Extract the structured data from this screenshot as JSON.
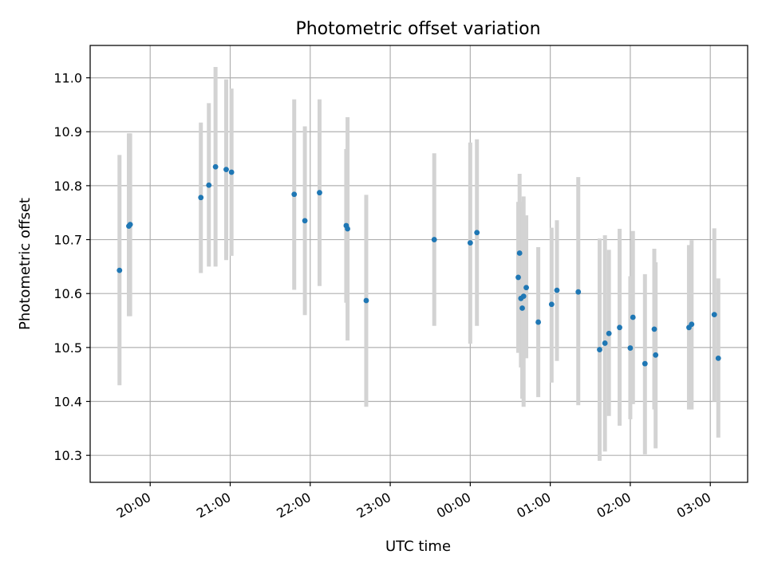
{
  "chart_data": {
    "type": "scatter",
    "title": "Photometric offset variation",
    "xlabel": "UTC time",
    "ylabel": "Photometric offset",
    "xlim": [
      "19:15",
      "03:28"
    ],
    "ylim": [
      10.25,
      11.06
    ],
    "x_ticks": [
      "20:00",
      "21:00",
      "22:00",
      "23:00",
      "00:00",
      "01:00",
      "02:00",
      "03:00"
    ],
    "y_ticks": [
      "10.3",
      "10.4",
      "10.5",
      "10.6",
      "10.7",
      "10.8",
      "10.9",
      "11.0"
    ],
    "grid": true,
    "point_color": "#1f77b4",
    "errorbar_color": "#d3d3d3",
    "series": [
      {
        "points": [
          {
            "t": "19:37",
            "y": 10.643,
            "lo": 10.43,
            "hi": 10.857
          },
          {
            "t": "19:44",
            "y": 10.725,
            "lo": 10.558,
            "hi": 10.897
          },
          {
            "t": "19:45",
            "y": 10.728,
            "lo": 10.558,
            "hi": 10.897
          },
          {
            "t": "20:38",
            "y": 10.778,
            "lo": 10.638,
            "hi": 10.917
          },
          {
            "t": "20:44",
            "y": 10.801,
            "lo": 10.65,
            "hi": 10.953
          },
          {
            "t": "20:49",
            "y": 10.835,
            "lo": 10.65,
            "hi": 11.02
          },
          {
            "t": "20:57",
            "y": 10.83,
            "lo": 10.662,
            "hi": 10.997
          },
          {
            "t": "21:01",
            "y": 10.825,
            "lo": 10.67,
            "hi": 10.98
          },
          {
            "t": "21:48",
            "y": 10.784,
            "lo": 10.607,
            "hi": 10.96
          },
          {
            "t": "21:56",
            "y": 10.735,
            "lo": 10.56,
            "hi": 10.91
          },
          {
            "t": "22:07",
            "y": 10.787,
            "lo": 10.614,
            "hi": 10.96
          },
          {
            "t": "22:27",
            "y": 10.726,
            "lo": 10.583,
            "hi": 10.868
          },
          {
            "t": "22:28",
            "y": 10.72,
            "lo": 10.513,
            "hi": 10.927
          },
          {
            "t": "22:42",
            "y": 10.587,
            "lo": 10.39,
            "hi": 10.783
          },
          {
            "t": "23:33",
            "y": 10.7,
            "lo": 10.54,
            "hi": 10.86
          },
          {
            "t": "00:00",
            "y": 10.694,
            "lo": 10.507,
            "hi": 10.88
          },
          {
            "t": "00:05",
            "y": 10.713,
            "lo": 10.54,
            "hi": 10.886
          },
          {
            "t": "00:36",
            "y": 10.63,
            "lo": 10.49,
            "hi": 10.77
          },
          {
            "t": "00:37",
            "y": 10.675,
            "lo": 10.53,
            "hi": 10.822
          },
          {
            "t": "00:38",
            "y": 10.591,
            "lo": 10.463,
            "hi": 10.77
          },
          {
            "t": "00:39",
            "y": 10.573,
            "lo": 10.405,
            "hi": 10.76
          },
          {
            "t": "00:40",
            "y": 10.595,
            "lo": 10.39,
            "hi": 10.78
          },
          {
            "t": "00:42",
            "y": 10.611,
            "lo": 10.48,
            "hi": 10.745
          },
          {
            "t": "00:51",
            "y": 10.547,
            "lo": 10.408,
            "hi": 10.686
          },
          {
            "t": "01:01",
            "y": 10.58,
            "lo": 10.435,
            "hi": 10.722
          },
          {
            "t": "01:05",
            "y": 10.606,
            "lo": 10.475,
            "hi": 10.736
          },
          {
            "t": "01:21",
            "y": 10.603,
            "lo": 10.393,
            "hi": 10.816
          },
          {
            "t": "01:37",
            "y": 10.496,
            "lo": 10.29,
            "hi": 10.702
          },
          {
            "t": "01:41",
            "y": 10.508,
            "lo": 10.307,
            "hi": 10.708
          },
          {
            "t": "01:44",
            "y": 10.526,
            "lo": 10.373,
            "hi": 10.681
          },
          {
            "t": "01:52",
            "y": 10.537,
            "lo": 10.355,
            "hi": 10.72
          },
          {
            "t": "02:00",
            "y": 10.499,
            "lo": 10.367,
            "hi": 10.632
          },
          {
            "t": "02:02",
            "y": 10.556,
            "lo": 10.395,
            "hi": 10.716
          },
          {
            "t": "02:11",
            "y": 10.47,
            "lo": 10.302,
            "hi": 10.636
          },
          {
            "t": "02:18",
            "y": 10.534,
            "lo": 10.385,
            "hi": 10.683
          },
          {
            "t": "02:19",
            "y": 10.486,
            "lo": 10.313,
            "hi": 10.658
          },
          {
            "t": "02:44",
            "y": 10.537,
            "lo": 10.385,
            "hi": 10.69
          },
          {
            "t": "02:46",
            "y": 10.543,
            "lo": 10.385,
            "hi": 10.699
          },
          {
            "t": "03:03",
            "y": 10.561,
            "lo": 10.4,
            "hi": 10.721
          },
          {
            "t": "03:06",
            "y": 10.48,
            "lo": 10.333,
            "hi": 10.628
          }
        ]
      }
    ]
  }
}
